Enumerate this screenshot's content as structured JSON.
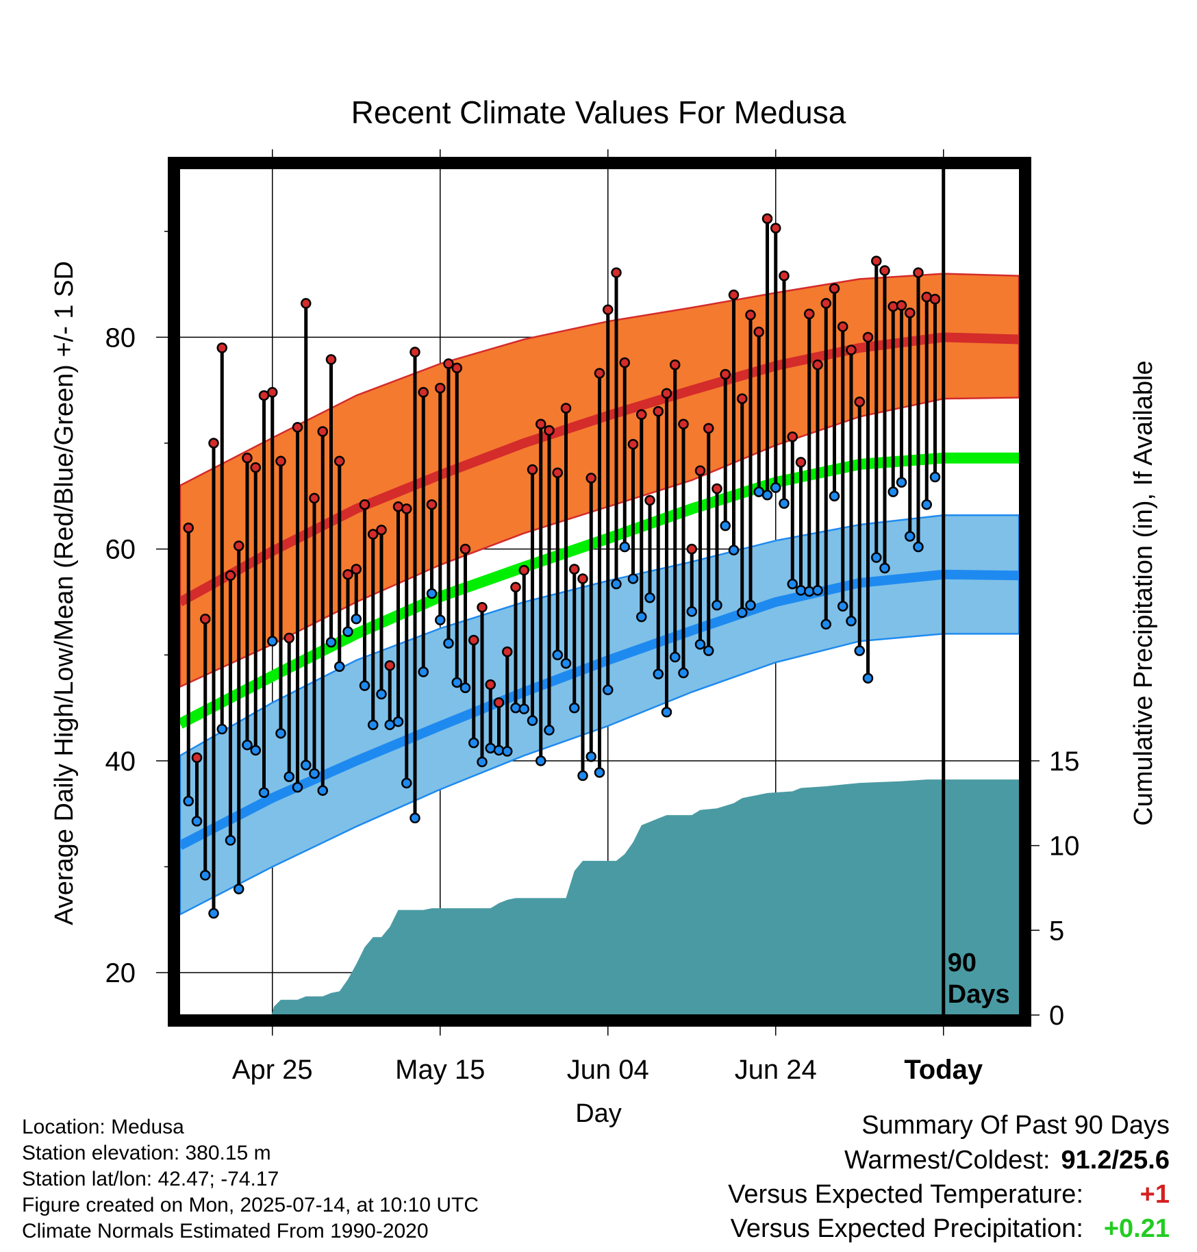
{
  "chart_data": {
    "type": "line",
    "title": "Recent Climate Values For Medusa",
    "xlabel": "Day",
    "ylabel": "Average Daily High/Low/Mean (Red/Blue/Green) +/- 1 SD",
    "y2label": "Cumulative Precipitation (in), If Available",
    "x_tick_labels": [
      "Apr 25",
      "May 15",
      "Jun 04",
      "Jun 24",
      "Today"
    ],
    "x_tick_days": [
      10,
      30,
      50,
      70,
      90
    ],
    "xlim": [
      -1,
      99
    ],
    "ylim": [
      16,
      96
    ],
    "yticks": [
      20,
      40,
      60,
      80
    ],
    "y2lim": [
      0,
      50
    ],
    "y2ticks": [
      0,
      5,
      10,
      15
    ],
    "grid": true,
    "today_annotation": "90 Days",
    "colors": {
      "high": "#d42b2b",
      "high_band": "#f47a2f",
      "low": "#1e8af0",
      "low_band": "#7fc0e8",
      "mean": "#00ee00",
      "precip": "#4a9aa3"
    },
    "normal_high": [
      [
        -1,
        55.0
      ],
      [
        10,
        59.8
      ],
      [
        20,
        63.8
      ],
      [
        30,
        67.0
      ],
      [
        40,
        70.0
      ],
      [
        50,
        72.6
      ],
      [
        60,
        75.0
      ],
      [
        70,
        77.3
      ],
      [
        80,
        79.0
      ],
      [
        90,
        80.0
      ],
      [
        99,
        79.8
      ]
    ],
    "normal_high_band": {
      "upper": [
        [
          -1,
          66.0
        ],
        [
          10,
          70.5
        ],
        [
          20,
          74.5
        ],
        [
          30,
          77.5
        ],
        [
          40,
          79.8
        ],
        [
          50,
          81.5
        ],
        [
          60,
          82.8
        ],
        [
          70,
          84.2
        ],
        [
          80,
          85.5
        ],
        [
          90,
          86.0
        ],
        [
          99,
          85.8
        ]
      ],
      "lower": [
        [
          -1,
          47.0
        ],
        [
          10,
          51.0
        ],
        [
          20,
          55.0
        ],
        [
          30,
          58.5
        ],
        [
          40,
          61.5
        ],
        [
          50,
          64.0
        ],
        [
          60,
          66.5
        ],
        [
          70,
          69.8
        ],
        [
          80,
          72.5
        ],
        [
          90,
          74.2
        ],
        [
          99,
          74.3
        ]
      ]
    },
    "normal_low": [
      [
        -1,
        32.0
      ],
      [
        10,
        36.5
      ],
      [
        20,
        40.0
      ],
      [
        30,
        43.3
      ],
      [
        40,
        46.5
      ],
      [
        50,
        49.5
      ],
      [
        60,
        52.3
      ],
      [
        70,
        55.0
      ],
      [
        80,
        56.8
      ],
      [
        90,
        57.6
      ],
      [
        99,
        57.5
      ]
    ],
    "normal_low_band": {
      "upper": [
        [
          -1,
          40.5
        ],
        [
          10,
          45.5
        ],
        [
          20,
          49.5
        ],
        [
          30,
          52.5
        ],
        [
          40,
          55.0
        ],
        [
          50,
          57.0
        ],
        [
          60,
          58.8
        ],
        [
          70,
          60.8
        ],
        [
          80,
          62.3
        ],
        [
          90,
          63.2
        ],
        [
          99,
          63.2
        ]
      ],
      "lower": [
        [
          -1,
          25.5
        ],
        [
          10,
          30.0
        ],
        [
          20,
          33.8
        ],
        [
          30,
          37.3
        ],
        [
          40,
          40.5
        ],
        [
          50,
          43.3
        ],
        [
          60,
          46.5
        ],
        [
          70,
          49.3
        ],
        [
          80,
          51.3
        ],
        [
          90,
          52.0
        ],
        [
          99,
          52.0
        ]
      ]
    },
    "normal_mean": [
      [
        -1,
        43.5
      ],
      [
        10,
        48.0
      ],
      [
        20,
        52.0
      ],
      [
        30,
        55.5
      ],
      [
        40,
        58.3
      ],
      [
        50,
        61.0
      ],
      [
        60,
        63.8
      ],
      [
        70,
        66.3
      ],
      [
        80,
        68.0
      ],
      [
        90,
        68.6
      ],
      [
        99,
        68.6
      ]
    ],
    "daily": {
      "days": [
        0,
        1,
        2,
        3,
        4,
        5,
        6,
        7,
        8,
        9,
        10,
        11,
        12,
        13,
        14,
        15,
        16,
        17,
        18,
        19,
        20,
        21,
        22,
        23,
        24,
        25,
        26,
        27,
        28,
        29,
        30,
        31,
        32,
        33,
        34,
        35,
        36,
        37,
        38,
        39,
        40,
        41,
        42,
        43,
        44,
        45,
        46,
        47,
        48,
        49,
        50,
        51,
        52,
        53,
        54,
        55,
        56,
        57,
        58,
        59,
        60,
        61,
        62,
        63,
        64,
        65,
        66,
        67,
        68,
        69,
        70,
        71,
        72,
        73,
        74,
        75,
        76,
        77,
        78,
        79,
        80,
        81,
        82,
        83,
        84,
        85,
        86,
        87,
        88,
        89
      ],
      "high": [
        62.0,
        40.3,
        53.4,
        70.0,
        79.0,
        57.5,
        60.3,
        68.6,
        67.7,
        74.5,
        74.8,
        68.3,
        51.6,
        71.5,
        83.2,
        64.8,
        71.1,
        77.9,
        68.3,
        57.6,
        58.1,
        64.2,
        61.4,
        61.8,
        49.0,
        64.0,
        63.8,
        78.6,
        74.8,
        64.2,
        75.2,
        77.5,
        77.1,
        60.0,
        51.4,
        54.5,
        47.2,
        45.5,
        50.3,
        56.4,
        58.0,
        67.5,
        71.8,
        71.2,
        67.2,
        73.3,
        58.1,
        57.2,
        66.7,
        76.6,
        82.6,
        86.1,
        77.6,
        69.9,
        72.7,
        64.6,
        73.0,
        74.7,
        77.4,
        71.8,
        60.0,
        67.4,
        71.4,
        65.7,
        76.5,
        84.0,
        74.2,
        82.1,
        80.5,
        91.2,
        90.3,
        85.8,
        70.6,
        68.2,
        82.2,
        77.4,
        83.2,
        84.6,
        81.0,
        78.8,
        73.9,
        80.0,
        87.2,
        86.3,
        82.9,
        83.0,
        82.3,
        86.1,
        83.8,
        83.6
      ],
      "low": [
        36.2,
        34.3,
        29.2,
        25.6,
        43.0,
        32.5,
        27.9,
        41.5,
        41.0,
        37.0,
        51.3,
        42.6,
        38.5,
        37.5,
        39.6,
        38.8,
        37.2,
        51.2,
        48.9,
        52.2,
        53.4,
        47.1,
        43.4,
        46.3,
        43.4,
        43.7,
        37.9,
        34.6,
        48.4,
        55.8,
        53.3,
        51.1,
        47.4,
        46.9,
        41.7,
        39.9,
        41.2,
        41.0,
        40.9,
        45.0,
        44.9,
        43.8,
        40.0,
        42.9,
        50.0,
        49.2,
        45.0,
        38.6,
        40.4,
        38.9,
        46.7,
        56.7,
        60.2,
        57.2,
        53.6,
        55.4,
        48.2,
        44.6,
        49.8,
        48.3,
        54.1,
        51.0,
        50.4,
        54.7,
        62.2,
        59.9,
        54.0,
        54.7,
        65.4,
        65.1,
        65.8,
        64.3,
        56.7,
        56.1,
        56.0,
        56.1,
        52.9,
        65.0,
        54.6,
        53.2,
        50.4,
        47.8,
        59.2,
        58.2,
        65.4,
        66.3,
        61.2,
        60.2,
        64.2,
        66.8
      ]
    },
    "cumulative_precip": [
      [
        9.9,
        0
      ],
      [
        10.2,
        0.5
      ],
      [
        11,
        0.9
      ],
      [
        13,
        0.9
      ],
      [
        14,
        1.1
      ],
      [
        16,
        1.1
      ],
      [
        17,
        1.3
      ],
      [
        18,
        1.4
      ],
      [
        19,
        2.1
      ],
      [
        20,
        3.0
      ],
      [
        21,
        4.0
      ],
      [
        22,
        4.6
      ],
      [
        23,
        4.6
      ],
      [
        24,
        5.2
      ],
      [
        25,
        6.2
      ],
      [
        28,
        6.2
      ],
      [
        29,
        6.3
      ],
      [
        36,
        6.3
      ],
      [
        37,
        6.6
      ],
      [
        38,
        6.8
      ],
      [
        39,
        6.9
      ],
      [
        45,
        6.9
      ],
      [
        46,
        8.5
      ],
      [
        47,
        9.1
      ],
      [
        51,
        9.1
      ],
      [
        52,
        9.5
      ],
      [
        53,
        10.2
      ],
      [
        54,
        11.2
      ],
      [
        56,
        11.6
      ],
      [
        57,
        11.8
      ],
      [
        60,
        11.8
      ],
      [
        61,
        12.1
      ],
      [
        63,
        12.2
      ],
      [
        65,
        12.5
      ],
      [
        66,
        12.8
      ],
      [
        68,
        13.0
      ],
      [
        69,
        13.1
      ],
      [
        72,
        13.2
      ],
      [
        73,
        13.4
      ],
      [
        76,
        13.5
      ],
      [
        78,
        13.6
      ],
      [
        80,
        13.7
      ],
      [
        85,
        13.8
      ],
      [
        88,
        13.9
      ],
      [
        99,
        13.9
      ]
    ]
  },
  "info": {
    "location": "Location: Medusa",
    "elevation": "Station elevation: 380.15 m",
    "latlon": "Station lat/lon: 42.47; -74.17",
    "created": "Figure created on Mon, 2025-07-14, at 10:10 UTC",
    "normals": "Climate Normals Estimated From 1990-2020"
  },
  "summary": {
    "title": "Summary Of Past 90 Days",
    "warmest_label": "Warmest/Coldest:",
    "warmest_value": "91.2/25.6",
    "temp_label": "Versus Expected Temperature:",
    "temp_value": "+1",
    "temp_color": "#d42020",
    "precip_label": "Versus Expected Precipitation:",
    "precip_value": "+0.21",
    "precip_color": "#22cc22"
  }
}
